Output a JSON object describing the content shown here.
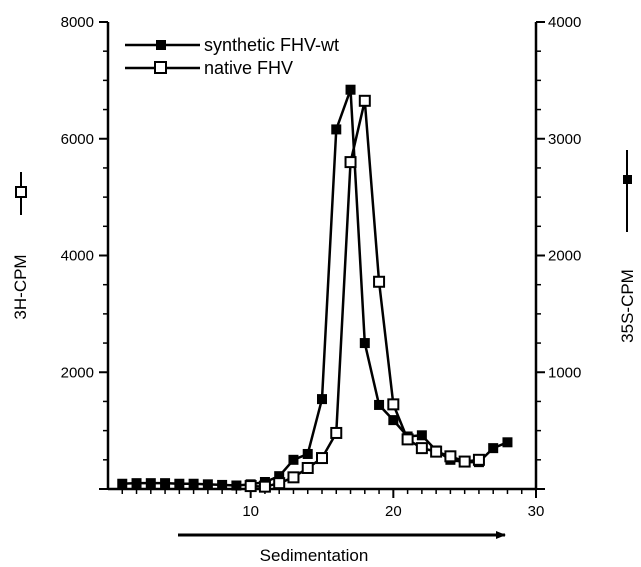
{
  "chart_data": {
    "type": "line",
    "xlabel": "Sedimentation",
    "ylabel_left": "3H-CPM",
    "ylabel_right": "35S-CPM",
    "xlim": [
      0,
      30
    ],
    "ylim_left": [
      0,
      8000
    ],
    "ylim_right": [
      0,
      4000
    ],
    "x_ticks": [
      "10",
      "20",
      "30"
    ],
    "x_tick_values": [
      10,
      20,
      30
    ],
    "y_left_ticks": [
      "2000",
      "4000",
      "6000",
      "8000"
    ],
    "y_left_tick_values": [
      2000,
      4000,
      6000,
      8000
    ],
    "y_right_ticks": [
      "1000",
      "2000",
      "3000",
      "4000"
    ],
    "y_right_tick_values": [
      1000,
      2000,
      3000,
      4000
    ],
    "legend_position": "top-left",
    "series": [
      {
        "name": "synthetic FHV-wt",
        "axis": "right",
        "marker": "filled-square",
        "x": [
          1,
          2,
          3,
          4,
          5,
          6,
          7,
          8,
          9,
          10,
          11,
          12,
          13,
          14,
          15,
          16,
          17,
          18,
          19,
          20,
          21,
          22,
          23,
          24,
          25,
          26,
          27,
          28
        ],
        "y": [
          45,
          50,
          50,
          50,
          45,
          45,
          40,
          35,
          30,
          40,
          60,
          110,
          250,
          300,
          770,
          3080,
          3420,
          1250,
          720,
          590,
          450,
          460,
          330,
          250,
          230,
          230,
          350,
          400
        ]
      },
      {
        "name": "native FHV",
        "axis": "left",
        "marker": "open-square",
        "x": [
          10,
          11,
          12,
          13,
          14,
          15,
          16,
          17,
          18,
          19,
          20,
          21,
          22,
          23,
          24,
          25,
          26
        ],
        "y": [
          50,
          40,
          100,
          200,
          360,
          530,
          960,
          5600,
          6650,
          3550,
          1450,
          850,
          700,
          640,
          560,
          470,
          500
        ]
      }
    ]
  }
}
